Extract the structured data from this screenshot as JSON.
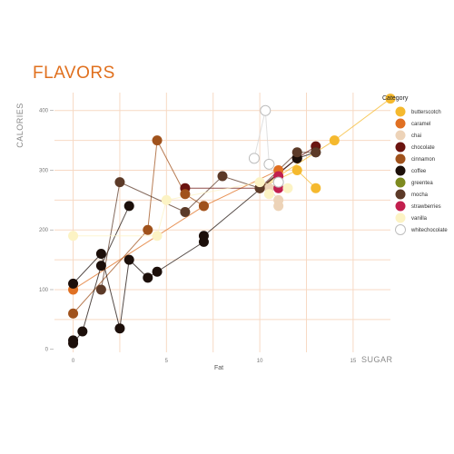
{
  "chart_data": {
    "type": "scatter",
    "title": "FLAVORS",
    "ylabel": "CALORIES",
    "xlabel": "Fat",
    "corner_label": "SUGAR",
    "xlim": [
      -1,
      17
    ],
    "ylim": [
      -5,
      430
    ],
    "x_ticks": [
      0,
      5,
      10,
      15
    ],
    "y_ticks": [
      0,
      100,
      200,
      300,
      400
    ],
    "grid_x": [
      0,
      2.5,
      5,
      7.5,
      10,
      12.5,
      15
    ],
    "grid_y": [
      50,
      100,
      150,
      200,
      250,
      300,
      350,
      400
    ],
    "grid_color": "#f7d9c4",
    "legend": {
      "title": "Category",
      "position": "right"
    },
    "series": [
      {
        "name": "butterscotch",
        "color": "#f5b92e",
        "lines": [
          [
            [
              10,
              270
            ],
            [
              12,
              300
            ],
            [
              13,
              270
            ]
          ],
          [
            [
              10,
              270
            ],
            [
              14,
              350
            ],
            [
              17,
              420
            ]
          ]
        ],
        "points": [
          [
            10,
            270
          ],
          [
            12,
            300
          ],
          [
            13,
            270
          ],
          [
            14,
            350
          ],
          [
            17,
            420
          ]
        ]
      },
      {
        "name": "caramel",
        "color": "#e07022",
        "lines": [
          [
            [
              0,
              100
            ],
            [
              7,
              240
            ],
            [
              11,
              300
            ]
          ]
        ],
        "points": [
          [
            0,
            100
          ],
          [
            7,
            240
          ],
          [
            11,
            300
          ]
        ]
      },
      {
        "name": "chai",
        "color": "#edd3b8",
        "lines": [
          [
            [
              10.5,
              270
            ],
            [
              11,
              250
            ],
            [
              11,
              240
            ]
          ]
        ],
        "points": [
          [
            10.5,
            270
          ],
          [
            11,
            250
          ],
          [
            11,
            240
          ]
        ]
      },
      {
        "name": "chocolate",
        "color": "#6b1410",
        "lines": [
          [
            [
              6,
              270
            ],
            [
              10,
              270
            ],
            [
              12,
              320
            ],
            [
              13,
              340
            ]
          ]
        ],
        "points": [
          [
            6,
            270
          ],
          [
            10,
            270
          ],
          [
            12,
            320
          ],
          [
            13,
            340
          ]
        ]
      },
      {
        "name": "cinnamon",
        "color": "#a0521c",
        "lines": [
          [
            [
              0,
              60
            ],
            [
              4,
              200
            ],
            [
              4.5,
              350
            ],
            [
              6,
              260
            ],
            [
              7,
              240
            ]
          ]
        ],
        "points": [
          [
            0,
            60
          ],
          [
            4,
            200
          ],
          [
            4.5,
            350
          ],
          [
            6,
            260
          ],
          [
            7,
            240
          ]
        ]
      },
      {
        "name": "coffee",
        "color": "#1c0f0a",
        "lines": [
          [
            [
              0,
              110
            ],
            [
              1.5,
              160
            ],
            [
              2.5,
              35
            ],
            [
              3,
              150
            ],
            [
              4,
              120
            ],
            [
              4.5,
              130
            ],
            [
              7,
              180
            ],
            [
              7,
              190
            ],
            [
              12,
              320
            ],
            [
              13,
              330
            ]
          ],
          [
            [
              0,
              10
            ],
            [
              0.5,
              30
            ],
            [
              1.5,
              140
            ],
            [
              3,
              240
            ]
          ]
        ],
        "points": [
          [
            0,
            110
          ],
          [
            0,
            15
          ],
          [
            0,
            10
          ],
          [
            0.5,
            30
          ],
          [
            1.5,
            160
          ],
          [
            1.5,
            140
          ],
          [
            2.5,
            35
          ],
          [
            3,
            150
          ],
          [
            3,
            240
          ],
          [
            4,
            120
          ],
          [
            4.5,
            130
          ],
          [
            7,
            180
          ],
          [
            7,
            190
          ],
          [
            12,
            320
          ],
          [
            13,
            330
          ]
        ]
      },
      {
        "name": "greentea",
        "color": "#7d8a1f",
        "lines": [],
        "points": []
      },
      {
        "name": "mocha",
        "color": "#5c3a28",
        "lines": [
          [
            [
              1.5,
              100
            ],
            [
              2.5,
              280
            ],
            [
              6,
              230
            ],
            [
              8,
              290
            ],
            [
              10,
              270
            ],
            [
              12,
              330
            ],
            [
              13,
              330
            ]
          ]
        ],
        "points": [
          [
            1.5,
            100
          ],
          [
            2.5,
            280
          ],
          [
            6,
            230
          ],
          [
            8,
            290
          ],
          [
            10,
            270
          ],
          [
            12,
            330
          ],
          [
            13,
            330
          ]
        ]
      },
      {
        "name": "strawberries",
        "color": "#c21f4e",
        "lines": [
          [
            [
              11,
              290
            ],
            [
              11,
              270
            ]
          ]
        ],
        "points": [
          [
            11,
            290
          ],
          [
            11,
            270
          ]
        ]
      },
      {
        "name": "vanilla",
        "color": "#fcf3c4",
        "lines": [
          [
            [
              0,
              190
            ],
            [
              4.5,
              190
            ],
            [
              5,
              250
            ],
            [
              10,
              280
            ],
            [
              11.5,
              270
            ]
          ]
        ],
        "points": [
          [
            0,
            190
          ],
          [
            4.5,
            190
          ],
          [
            5,
            250
          ],
          [
            10,
            280
          ],
          [
            10.5,
            260
          ],
          [
            11.5,
            270
          ]
        ]
      },
      {
        "name": "whitechocolate",
        "color": "#ffffff",
        "stroke": "#bdbdbd",
        "lines": [
          [
            [
              9.7,
              320
            ],
            [
              10.3,
              400
            ],
            [
              10.5,
              310
            ],
            [
              11,
              280
            ]
          ]
        ],
        "points": [
          [
            9.7,
            320
          ],
          [
            10.3,
            400
          ],
          [
            10.5,
            310
          ],
          [
            11,
            280
          ]
        ]
      }
    ]
  }
}
